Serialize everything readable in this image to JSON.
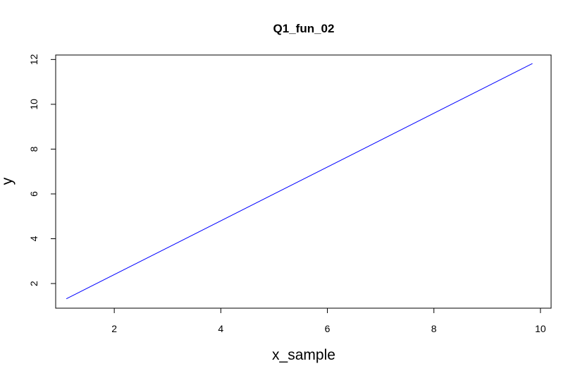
{
  "chart_data": {
    "type": "line",
    "title": "Q1_fun_02",
    "xlabel": "x_sample",
    "ylabel": "y",
    "xlim": [
      0.9,
      10.2
    ],
    "ylim": [
      0.9,
      12.2
    ],
    "x_ticks": [
      {
        "value": 2,
        "label": "2"
      },
      {
        "value": 4,
        "label": "4"
      },
      {
        "value": 6,
        "label": "6"
      },
      {
        "value": 8,
        "label": "8"
      },
      {
        "value": 10,
        "label": "10"
      }
    ],
    "y_ticks": [
      {
        "value": 2,
        "label": "2"
      },
      {
        "value": 4,
        "label": "4"
      },
      {
        "value": 6,
        "label": "6"
      },
      {
        "value": 8,
        "label": "8"
      },
      {
        "value": 10,
        "label": "10"
      },
      {
        "value": 12,
        "label": "12"
      }
    ],
    "grid": false,
    "series": [
      {
        "name": "y",
        "color": "#0000ff",
        "x": [
          1.1,
          9.85
        ],
        "y": [
          1.32,
          11.82
        ]
      }
    ]
  }
}
